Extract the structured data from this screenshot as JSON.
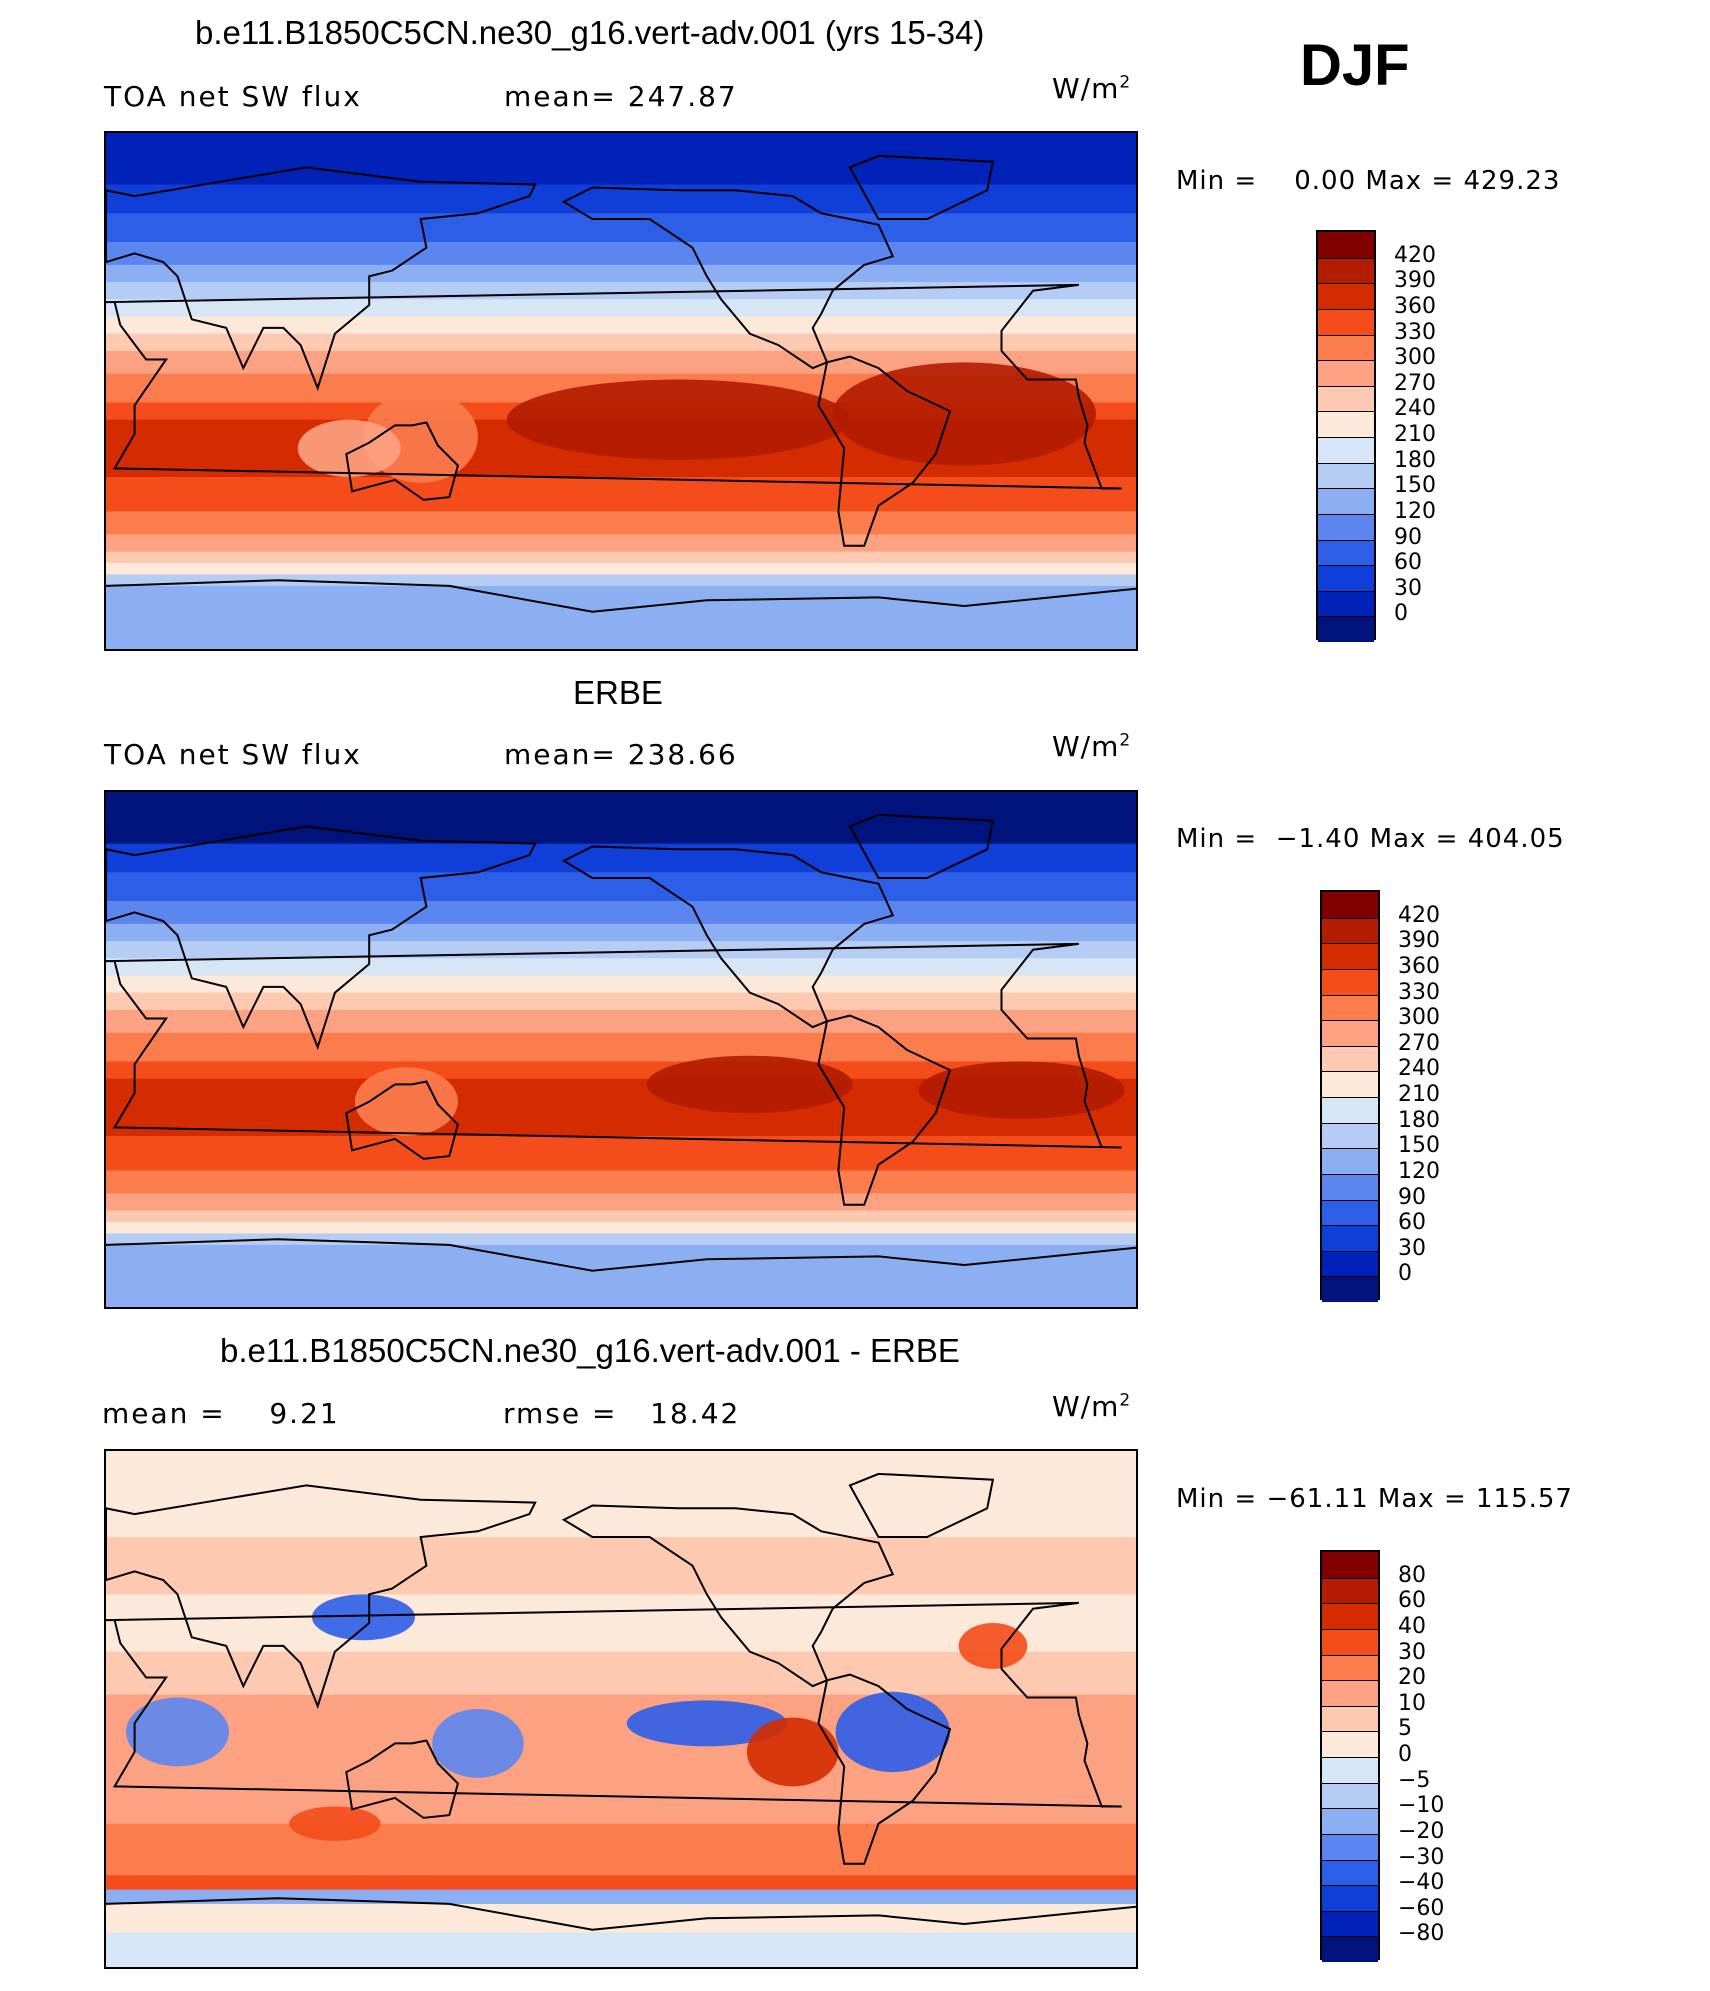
{
  "season": "DJF",
  "units": {
    "base": "W/m",
    "exp": "2"
  },
  "panels": [
    {
      "title": "b.e11.B1850C5CN.ne30_g16.vert-adv.001 (yrs 15-34)",
      "left_text": "TOA net SW flux",
      "center_text": "mean= 247.87",
      "minmax": "Min =    0.00 Max = 429.23",
      "field": "model",
      "colorbar": {
        "labels": [
          "420",
          "390",
          "360",
          "330",
          "300",
          "270",
          "240",
          "210",
          "180",
          "150",
          "120",
          "90",
          "60",
          "30",
          "0"
        ],
        "colors": [
          "#800000",
          "#b31c00",
          "#d52b00",
          "#f44c1a",
          "#fb7d4e",
          "#fca283",
          "#fdc9b0",
          "#fde9d9",
          "#d6e6f7",
          "#b5cdf4",
          "#8caef2",
          "#5b86f0",
          "#2c5ee8",
          "#0f3fd8",
          "#0022b8",
          "#00127c"
        ]
      }
    },
    {
      "title": "ERBE",
      "left_text": "TOA net SW flux",
      "center_text": "mean= 238.66",
      "minmax": "Min =  −1.40 Max = 404.05",
      "field": "obs",
      "colorbar": {
        "labels": [
          "420",
          "390",
          "360",
          "330",
          "300",
          "270",
          "240",
          "210",
          "180",
          "150",
          "120",
          "90",
          "60",
          "30",
          "0"
        ],
        "colors": [
          "#800000",
          "#b31c00",
          "#d52b00",
          "#f44c1a",
          "#fb7d4e",
          "#fca283",
          "#fdc9b0",
          "#fde9d9",
          "#d6e6f7",
          "#b5cdf4",
          "#8caef2",
          "#5b86f0",
          "#2c5ee8",
          "#0f3fd8",
          "#0022b8",
          "#00127c"
        ]
      }
    },
    {
      "title": "b.e11.B1850C5CN.ne30_g16.vert-adv.001 - ERBE",
      "left_text": "mean =    9.21",
      "center_text": "rmse =   18.42",
      "minmax": "Min = −61.11 Max = 115.57",
      "field": "diff",
      "colorbar": {
        "labels": [
          "80",
          "60",
          "40",
          "30",
          "20",
          "10",
          "5",
          "0",
          "−5",
          "−10",
          "−20",
          "−30",
          "−40",
          "−60",
          "−80"
        ],
        "colors": [
          "#800000",
          "#b31c00",
          "#d52b00",
          "#f44c1a",
          "#fb7d4e",
          "#fca283",
          "#fdc9b0",
          "#fde9d9",
          "#d6e6f7",
          "#b5cdf4",
          "#8caef2",
          "#5b86f0",
          "#2c5ee8",
          "#0f3fd8",
          "#0022b8",
          "#00127c"
        ]
      }
    }
  ]
}
